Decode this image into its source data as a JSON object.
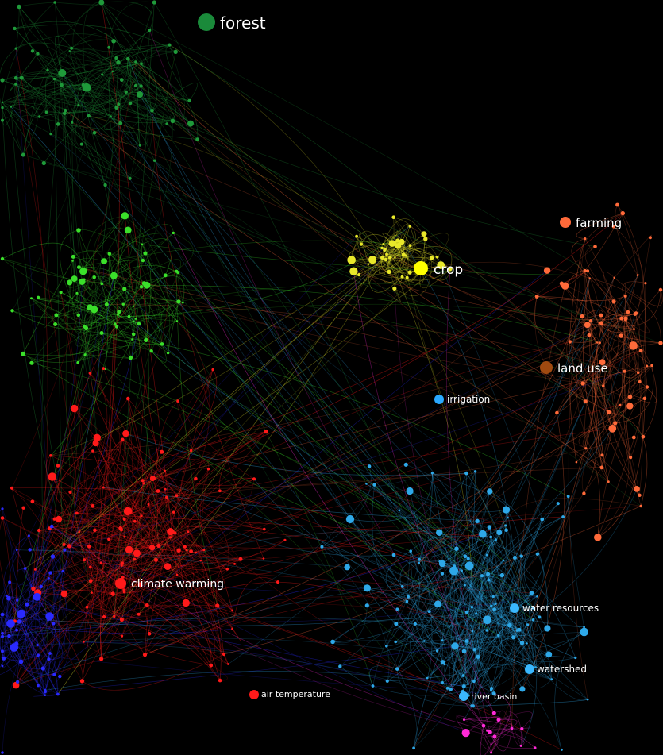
{
  "labels": [
    {
      "id": "forest",
      "text": "forest",
      "color": "#1a8a3a"
    },
    {
      "id": "crop",
      "text": "crop",
      "color": "#ffff00"
    },
    {
      "id": "farming",
      "text": "farming",
      "color": "#ff6a3a"
    },
    {
      "id": "land-use",
      "text": "land use",
      "color": "#a04a10"
    },
    {
      "id": "irrigation",
      "text": "irrigation",
      "color": "#2aa8ff"
    },
    {
      "id": "climate-warming",
      "text": "climate warming",
      "color": "#ff1a1a"
    },
    {
      "id": "water-resources",
      "text": "water resources",
      "color": "#3ab8ff"
    },
    {
      "id": "watershed",
      "text": "watershed",
      "color": "#3ab8ff"
    },
    {
      "id": "river-basin",
      "text": "river basin",
      "color": "#3ab8ff"
    },
    {
      "id": "air-temperature",
      "text": "air temperature",
      "color": "#ff1a1a"
    }
  ],
  "clusters": [
    {
      "id": "forest-cluster",
      "color": "#1f9a3a"
    },
    {
      "id": "vegetation-cluster",
      "color": "#3adf2a"
    },
    {
      "id": "crop-cluster",
      "color": "#e8e82a"
    },
    {
      "id": "farming-cluster",
      "color": "#ff6a3a"
    },
    {
      "id": "climate-cluster",
      "color": "#ff1a1a"
    },
    {
      "id": "water-cluster",
      "color": "#2ea8e8"
    },
    {
      "id": "atmosphere-cluster",
      "color": "#2a2aff"
    },
    {
      "id": "misc-cluster",
      "color": "#ff2ad8"
    }
  ]
}
